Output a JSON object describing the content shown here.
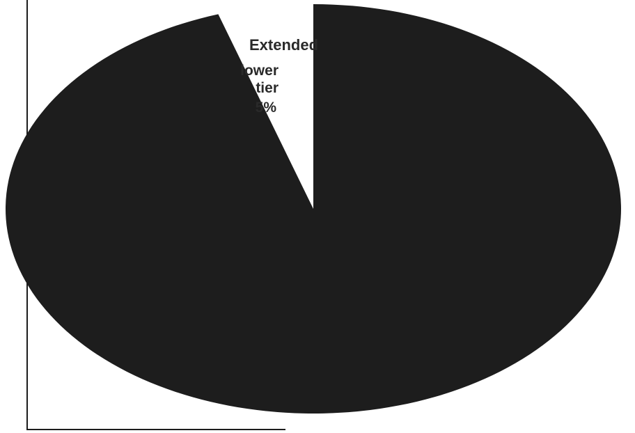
{
  "chart_data": {
    "type": "pie",
    "slices": [
      {
        "label_lines": [
          "Extended",
          "lower",
          "tier",
          "5%"
        ],
        "value": 5
      },
      {
        "label_lines": [],
        "value": 95
      }
    ],
    "colors": [
      "#ffffff",
      "#1d1d1d"
    ],
    "start_angle_deg": 0,
    "direction": "clockwise"
  }
}
